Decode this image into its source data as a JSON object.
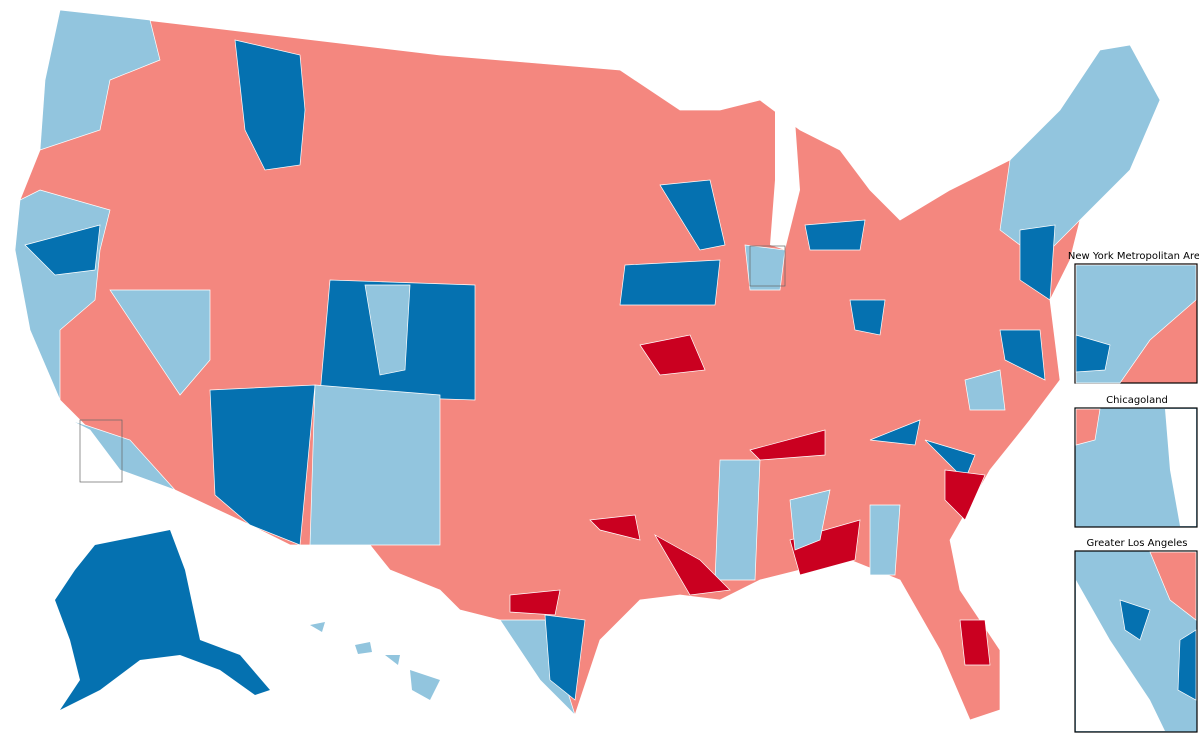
{
  "insets": [
    {
      "title": "New York Metropolitan Area"
    },
    {
      "title": "Chicagoland"
    },
    {
      "title": "Greater Los Angeles"
    }
  ]
}
